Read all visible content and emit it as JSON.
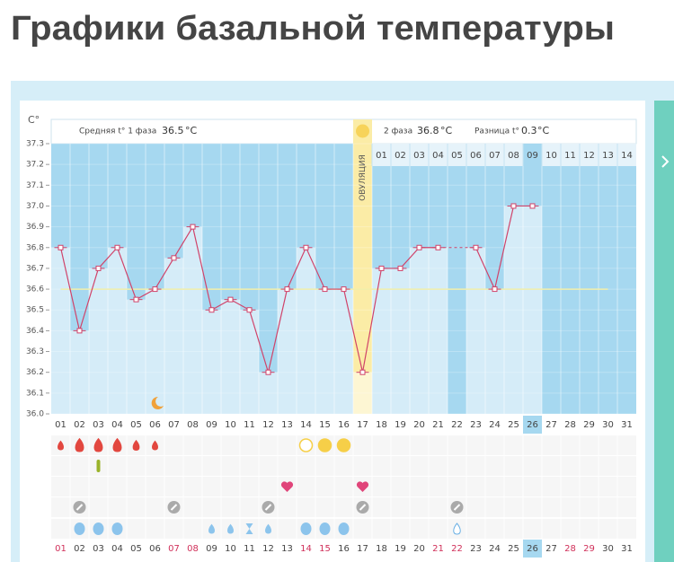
{
  "page_title": "Графики базальной температуры",
  "chart_data": {
    "type": "line",
    "y_unit": "C°",
    "temp_unit": "°C",
    "phase1_label": "Средняя t° 1 фаза",
    "phase1_avg": 36.5,
    "phase2_label": "2 фаза",
    "phase2_avg": 36.8,
    "diff_label": "Разница t°",
    "diff": 0.3,
    "ovulation_label": "ОВУЛЯЦИЯ",
    "ovulation_day": 17,
    "coverline": 36.6,
    "x": [
      "01",
      "02",
      "03",
      "04",
      "05",
      "06",
      "07",
      "08",
      "09",
      "10",
      "11",
      "12",
      "13",
      "14",
      "15",
      "16",
      "17",
      "18",
      "19",
      "20",
      "21",
      "22",
      "23",
      "24",
      "25",
      "26",
      "27",
      "28",
      "29",
      "30",
      "31"
    ],
    "phase2_days": [
      "01",
      "02",
      "03",
      "04",
      "05",
      "06",
      "07",
      "08",
      "09",
      "10",
      "11",
      "12",
      "13",
      "14"
    ],
    "highlight": "26",
    "weekends": [
      "01",
      "07",
      "08",
      "14",
      "15",
      "21",
      "22",
      "28",
      "29"
    ],
    "color": "#d0436a",
    "values": [
      36.8,
      36.4,
      36.7,
      36.8,
      36.55,
      36.6,
      36.75,
      36.9,
      36.5,
      36.55,
      36.5,
      36.2,
      36.6,
      36.8,
      36.6,
      36.6,
      36.2,
      36.7,
      36.7,
      36.8,
      36.8,
      null,
      36.8,
      36.6,
      37.0,
      37.0,
      null,
      null,
      null,
      null,
      null
    ],
    "ylim": [
      36.0,
      37.3
    ],
    "yticks": [
      {
        "value": 36,
        "label": "36.0"
      },
      36.1,
      36.2,
      36.3,
      36.4,
      36.5,
      36.6,
      36.7,
      36.8,
      36.9,
      {
        "value": 37,
        "label": "37.0"
      },
      37.1,
      37.2,
      37.3
    ]
  }
}
